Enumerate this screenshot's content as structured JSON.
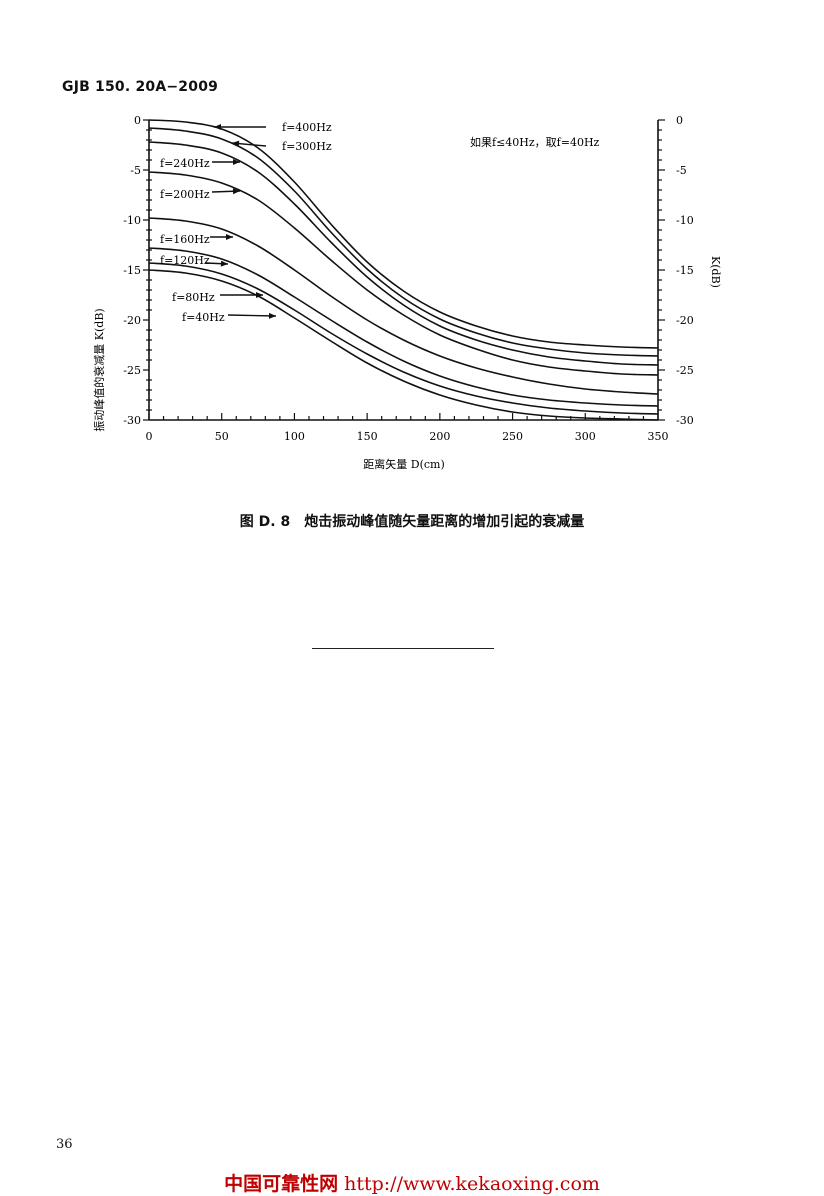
{
  "header": {
    "doc_id": "GJB 150. 20A−2009"
  },
  "chart_data": {
    "type": "line",
    "xlabel": "距离矢量 D(cm)",
    "ylabel": "振动峰值的衰减量 K(dB)",
    "ylabel_right": "K(dB)",
    "xlim": [
      0,
      350
    ],
    "ylim": [
      -30,
      0
    ],
    "x_ticks": [
      0,
      50,
      100,
      150,
      200,
      250,
      300,
      350
    ],
    "y_ticks": [
      0,
      -5,
      -10,
      -15,
      -20,
      -25,
      -30
    ],
    "grid": false,
    "annotation": "如果f≤40Hz，取f=40Hz",
    "x": [
      0,
      25,
      50,
      75,
      100,
      125,
      150,
      175,
      200,
      225,
      250,
      275,
      300,
      325,
      350
    ],
    "series": [
      {
        "name": "f=400Hz",
        "values": [
          0.0,
          -0.2,
          -0.9,
          -2.8,
          -6.2,
          -10.4,
          -14.2,
          -17.1,
          -19.2,
          -20.6,
          -21.6,
          -22.2,
          -22.5,
          -22.7,
          -22.8
        ]
      },
      {
        "name": "f=300Hz",
        "values": [
          -0.8,
          -1.1,
          -1.9,
          -3.8,
          -7.1,
          -11.2,
          -14.9,
          -17.8,
          -19.9,
          -21.3,
          -22.3,
          -22.9,
          -23.3,
          -23.5,
          -23.6
        ]
      },
      {
        "name": "f=240Hz",
        "values": [
          -2.2,
          -2.5,
          -3.3,
          -5.2,
          -8.4,
          -12.2,
          -15.7,
          -18.5,
          -20.6,
          -22.0,
          -23.0,
          -23.7,
          -24.1,
          -24.4,
          -24.5
        ]
      },
      {
        "name": "f=200Hz",
        "values": [
          -5.2,
          -5.5,
          -6.3,
          -8.0,
          -10.8,
          -14.0,
          -17.0,
          -19.5,
          -21.5,
          -22.9,
          -24.0,
          -24.7,
          -25.1,
          -25.4,
          -25.5
        ]
      },
      {
        "name": "f=160Hz",
        "values": [
          -9.8,
          -10.1,
          -10.9,
          -12.6,
          -15.0,
          -17.6,
          -20.0,
          -22.0,
          -23.6,
          -24.8,
          -25.7,
          -26.4,
          -26.9,
          -27.2,
          -27.4
        ]
      },
      {
        "name": "f=120Hz",
        "values": [
          -12.8,
          -13.1,
          -13.9,
          -15.5,
          -17.7,
          -20.0,
          -22.2,
          -24.1,
          -25.6,
          -26.7,
          -27.5,
          -28.0,
          -28.3,
          -28.5,
          -28.6
        ]
      },
      {
        "name": "f=80Hz",
        "values": [
          -14.3,
          -14.6,
          -15.4,
          -16.9,
          -19.0,
          -21.3,
          -23.4,
          -25.2,
          -26.6,
          -27.6,
          -28.3,
          -28.8,
          -29.1,
          -29.3,
          -29.4
        ]
      },
      {
        "name": "f=40Hz",
        "values": [
          -15.0,
          -15.3,
          -16.1,
          -17.6,
          -19.8,
          -22.1,
          -24.3,
          -26.1,
          -27.5,
          -28.5,
          -29.2,
          -29.6,
          -29.8,
          -29.9,
          -30.0
        ]
      }
    ]
  },
  "caption": {
    "fig_no": "图 D. 8",
    "title": "炮击振动峰值随矢量距离的增加引起的衰减量"
  },
  "page_number": "36",
  "footer": {
    "site_name": "中国可靠性网",
    "url": "http://www.kekaoxing.com"
  }
}
